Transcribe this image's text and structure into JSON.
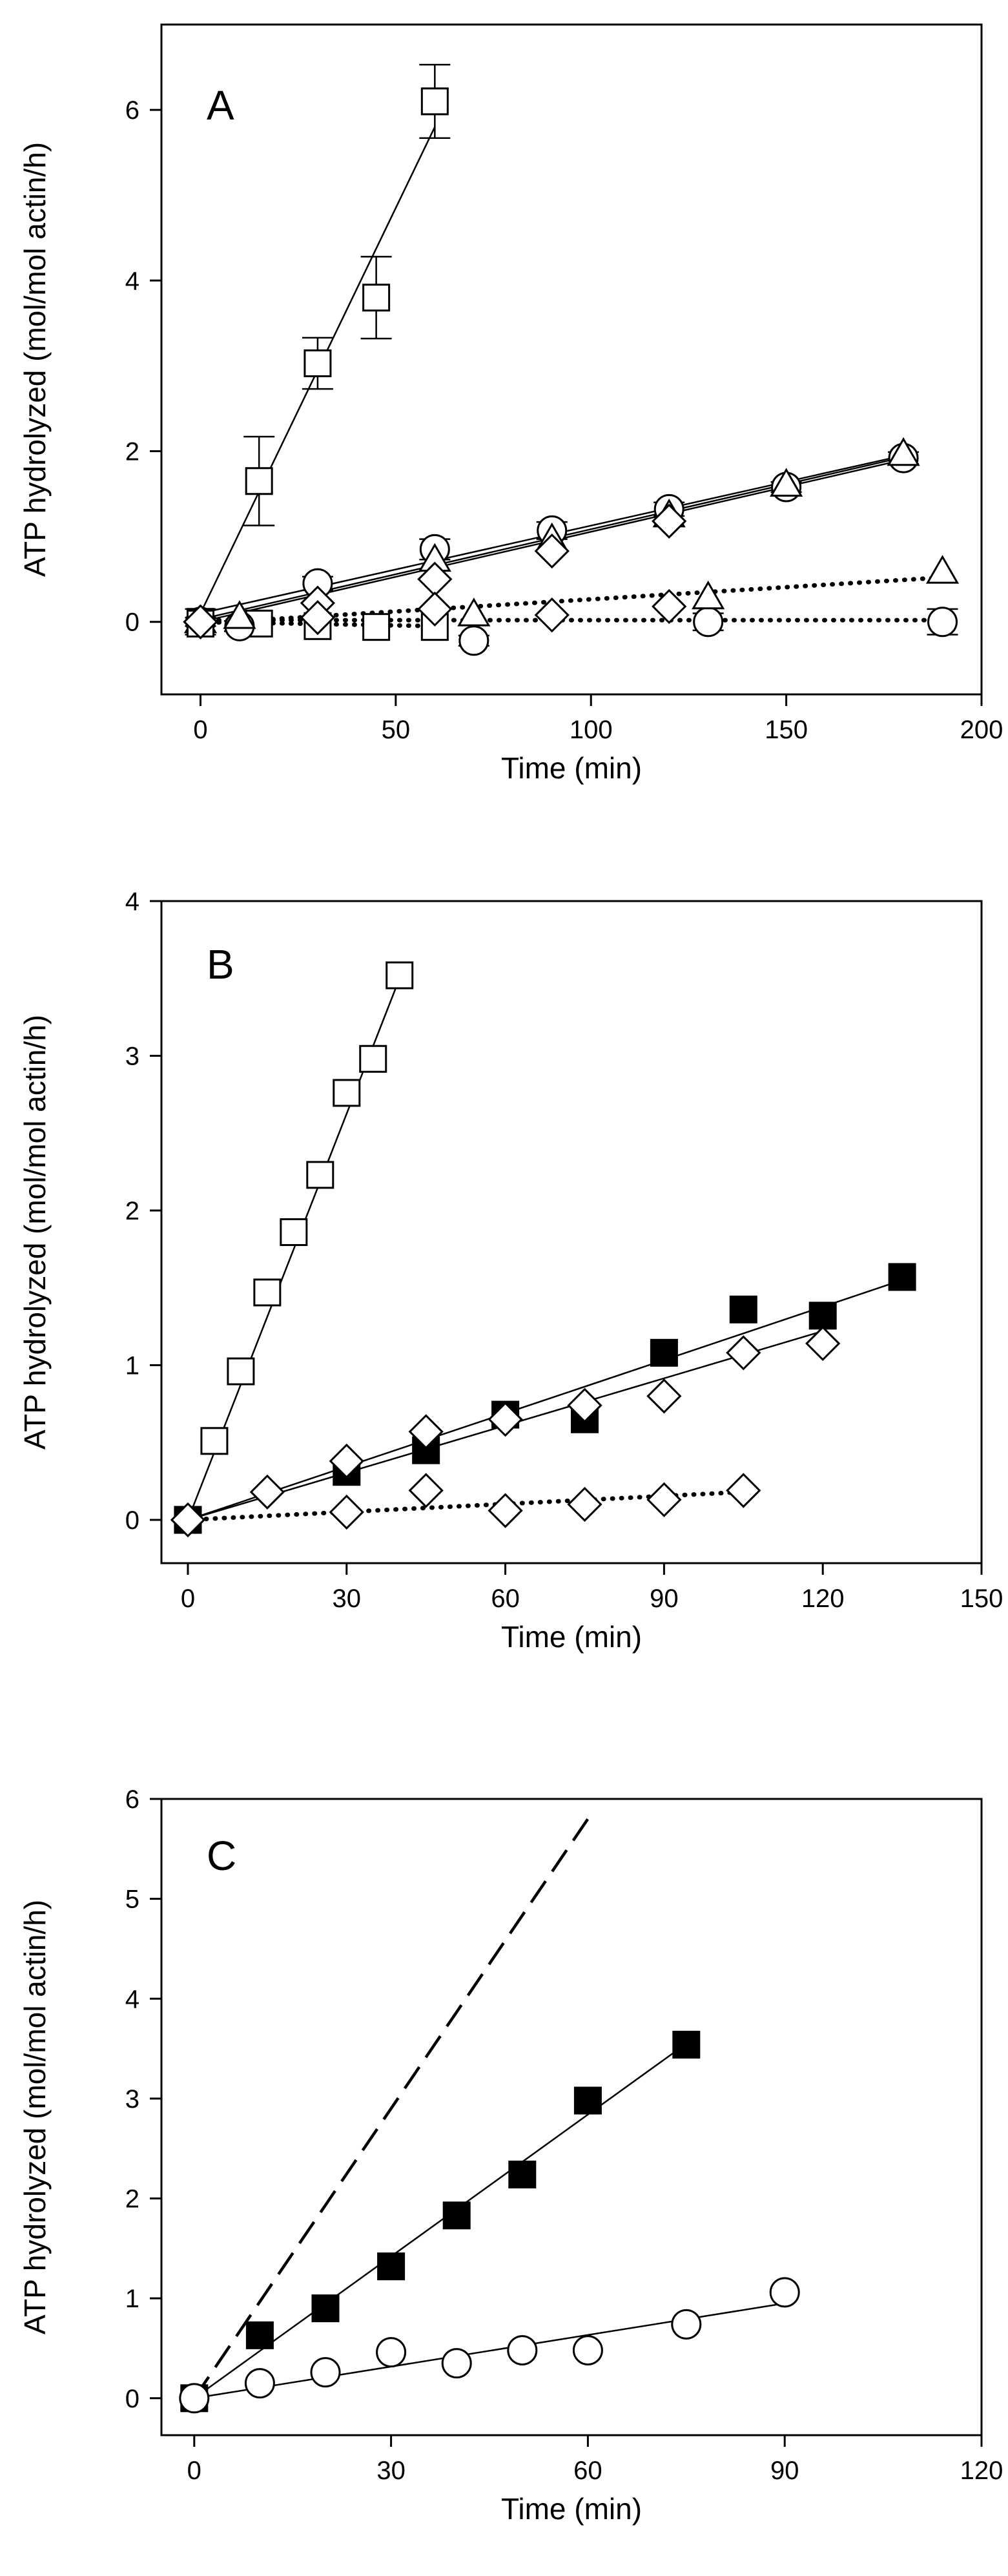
{
  "chart_data": [
    {
      "panel": "A",
      "type": "scatter",
      "xlabel": "Time (min)",
      "ylabel": "ATP hydrolyzed (mol/mol actin/h)",
      "xlim": [
        -10,
        200
      ],
      "ylim": [
        -0.85,
        7.0
      ],
      "xticks": [
        0,
        50,
        100,
        150,
        200
      ],
      "yticks": [
        0,
        2,
        4,
        6
      ],
      "xtick_labels": [
        "0",
        "50",
        "100",
        "150",
        "200"
      ],
      "ytick_labels": [
        "0",
        "2",
        "4",
        "6"
      ],
      "series": [
        {
          "name": "open squares (fast)",
          "marker": "square",
          "filled": false,
          "x": [
            0,
            15,
            30,
            45,
            60
          ],
          "y": [
            0.0,
            1.65,
            3.03,
            3.8,
            6.1
          ],
          "err": [
            0.15,
            0.52,
            0.3,
            0.48,
            0.43
          ],
          "fit": {
            "style": "solid",
            "x": [
              0,
              60
            ],
            "y": [
              0.1,
              5.8
            ]
          }
        },
        {
          "name": "open circles (solid)",
          "marker": "circle",
          "filled": false,
          "x": [
            0,
            30,
            60,
            90,
            120,
            150,
            180
          ],
          "y": [
            0.0,
            0.45,
            0.85,
            1.07,
            1.32,
            1.58,
            1.92
          ],
          "err": [
            0.05,
            0.08,
            0.12,
            0.1,
            0.08,
            0.06,
            0.07
          ],
          "fit": {
            "style": "solid",
            "x": [
              0,
              180
            ],
            "y": [
              0.1,
              1.95
            ]
          }
        },
        {
          "name": "open triangles (solid)",
          "marker": "triangle",
          "filled": false,
          "x": [
            0,
            60,
            90,
            120,
            150,
            180
          ],
          "y": [
            0.0,
            0.72,
            0.96,
            1.24,
            1.6,
            1.96
          ],
          "err": [
            0,
            0,
            0,
            0,
            0,
            0
          ],
          "fit": {
            "style": "solid",
            "x": [
              0,
              180
            ],
            "y": [
              0.03,
              1.93
            ]
          }
        },
        {
          "name": "open diamonds (solid)",
          "marker": "diamond",
          "filled": false,
          "x": [
            0,
            30,
            60,
            90,
            120
          ],
          "y": [
            0.0,
            0.22,
            0.5,
            0.83,
            1.18
          ],
          "err": [
            0,
            0,
            0,
            0,
            0
          ],
          "fit": {
            "style": "solid",
            "x": [
              0,
              180
            ],
            "y": [
              0.0,
              1.9
            ]
          }
        },
        {
          "name": "open squares (dotted)",
          "marker": "square",
          "filled": false,
          "x": [
            0,
            15,
            30,
            45,
            60
          ],
          "y": [
            -0.02,
            -0.02,
            -0.05,
            -0.06,
            -0.06
          ],
          "err": [
            0,
            0,
            0,
            0,
            0
          ],
          "fit": {
            "style": "dotted",
            "x": [
              0,
              60
            ],
            "y": [
              0.0,
              -0.05
            ]
          }
        },
        {
          "name": "open circles (dotted)",
          "marker": "circle",
          "filled": false,
          "x": [
            10,
            70,
            130,
            190
          ],
          "y": [
            -0.05,
            -0.22,
            0.0,
            0.0
          ],
          "err": [
            0.06,
            0.06,
            0.1,
            0.15
          ],
          "fit": {
            "style": "dotted",
            "x": [
              0,
              190
            ],
            "y": [
              0.02,
              0.02
            ]
          }
        },
        {
          "name": "open triangles (dotted)",
          "marker": "triangle",
          "filled": false,
          "x": [
            10,
            70,
            130,
            190
          ],
          "y": [
            0.05,
            0.08,
            0.28,
            0.58
          ],
          "err": [
            0,
            0,
            0,
            0
          ],
          "fit": {
            "style": "dotted",
            "x": [
              0,
              190
            ],
            "y": [
              -0.02,
              0.52
            ]
          }
        },
        {
          "name": "open diamonds (dotted)",
          "marker": "diamond",
          "filled": false,
          "x": [
            0,
            30,
            60,
            90,
            120
          ],
          "y": [
            0.0,
            0.05,
            0.15,
            0.08,
            0.18
          ],
          "err": [
            0,
            0,
            0,
            0,
            0
          ],
          "fit": {
            "style": "none"
          }
        }
      ]
    },
    {
      "panel": "B",
      "type": "scatter",
      "xlabel": "Time (min)",
      "ylabel": "ATP hydrolyzed (mol/mol actin/h)",
      "xlim": [
        -5,
        150
      ],
      "ylim": [
        -0.28,
        4.0
      ],
      "xticks": [
        0,
        30,
        60,
        90,
        120,
        150
      ],
      "yticks": [
        0,
        1,
        2,
        3,
        4
      ],
      "xtick_labels": [
        "0",
        "30",
        "60",
        "90",
        "120",
        "150"
      ],
      "ytick_labels": [
        "0",
        "1",
        "2",
        "3",
        "4"
      ],
      "series": [
        {
          "name": "open squares",
          "marker": "square",
          "filled": false,
          "x": [
            0,
            5,
            10,
            15,
            20,
            25,
            30,
            35,
            40
          ],
          "y": [
            0.0,
            0.51,
            0.96,
            1.47,
            1.86,
            2.23,
            2.76,
            2.98,
            3.52
          ],
          "err": [
            0,
            0,
            0,
            0,
            0,
            0,
            0,
            0,
            0
          ],
          "fit": {
            "style": "solid",
            "x": [
              0,
              40
            ],
            "y": [
              0.0,
              3.5
            ]
          }
        },
        {
          "name": "filled squares",
          "marker": "square",
          "filled": true,
          "x": [
            0,
            30,
            45,
            60,
            75,
            90,
            105,
            120,
            135
          ],
          "y": [
            0.0,
            0.31,
            0.45,
            0.68,
            0.65,
            1.08,
            1.36,
            1.32,
            1.57
          ],
          "err": [
            0,
            0,
            0,
            0,
            0,
            0,
            0,
            0,
            0
          ],
          "fit": {
            "style": "solid",
            "x": [
              0,
              135
            ],
            "y": [
              0.0,
              1.55
            ]
          }
        },
        {
          "name": "open diamonds (solid)",
          "marker": "diamond",
          "filled": false,
          "x": [
            0,
            15,
            30,
            45,
            60,
            75,
            90,
            105,
            120
          ],
          "y": [
            0.0,
            0.18,
            0.38,
            0.57,
            0.65,
            0.74,
            0.8,
            1.08,
            1.14
          ],
          "err": [
            0,
            0,
            0,
            0,
            0,
            0,
            0,
            0,
            0
          ],
          "fit": {
            "style": "solid",
            "x": [
              0,
              120
            ],
            "y": [
              0.0,
              1.22
            ]
          }
        },
        {
          "name": "open diamonds (dotted)",
          "marker": "diamond",
          "filled": false,
          "x": [
            30,
            45,
            60,
            75,
            90,
            105
          ],
          "y": [
            0.05,
            0.19,
            0.06,
            0.1,
            0.13,
            0.19
          ],
          "err": [
            0,
            0,
            0,
            0,
            0,
            0
          ],
          "fit": {
            "style": "dotted",
            "x": [
              0,
              105
            ],
            "y": [
              0.0,
              0.18
            ]
          }
        }
      ]
    },
    {
      "panel": "C",
      "type": "scatter",
      "xlabel": "Time (min)",
      "ylabel": "ATP hydrolyzed (mol/mol actin/h)",
      "xlim": [
        -5,
        120
      ],
      "ylim": [
        -0.37,
        6.0
      ],
      "xticks": [
        0,
        30,
        60,
        90,
        120
      ],
      "yticks": [
        0,
        1,
        2,
        3,
        4,
        5,
        6
      ],
      "xtick_labels": [
        "0",
        "30",
        "60",
        "90",
        "120"
      ],
      "ytick_labels": [
        "0",
        "1",
        "2",
        "3",
        "4",
        "5",
        "6"
      ],
      "series": [
        {
          "name": "filled squares",
          "marker": "square",
          "filled": true,
          "x": [
            0,
            10,
            20,
            30,
            40,
            50,
            60,
            75
          ],
          "y": [
            0.0,
            0.63,
            0.9,
            1.32,
            1.83,
            2.24,
            2.98,
            3.54
          ],
          "err": [
            0,
            0,
            0,
            0,
            0,
            0,
            0,
            0
          ],
          "fit": {
            "style": "solid",
            "x": [
              0,
              75
            ],
            "y": [
              0.0,
              3.55
            ]
          }
        },
        {
          "name": "open circles",
          "marker": "circle",
          "filled": false,
          "x": [
            0,
            10,
            20,
            30,
            40,
            50,
            60,
            75,
            90
          ],
          "y": [
            0.0,
            0.15,
            0.26,
            0.46,
            0.35,
            0.48,
            0.48,
            0.74,
            1.06
          ],
          "err": [
            0,
            0,
            0,
            0,
            0,
            0,
            0,
            0,
            0
          ],
          "fit": {
            "style": "solid",
            "x": [
              0,
              90
            ],
            "y": [
              0.0,
              0.95
            ]
          }
        },
        {
          "name": "dashed reference",
          "marker": "none",
          "filled": false,
          "x": [],
          "y": [],
          "err": [],
          "fit": {
            "style": "dashed",
            "x": [
              0,
              60
            ],
            "y": [
              0.0,
              5.8
            ]
          }
        }
      ]
    }
  ]
}
